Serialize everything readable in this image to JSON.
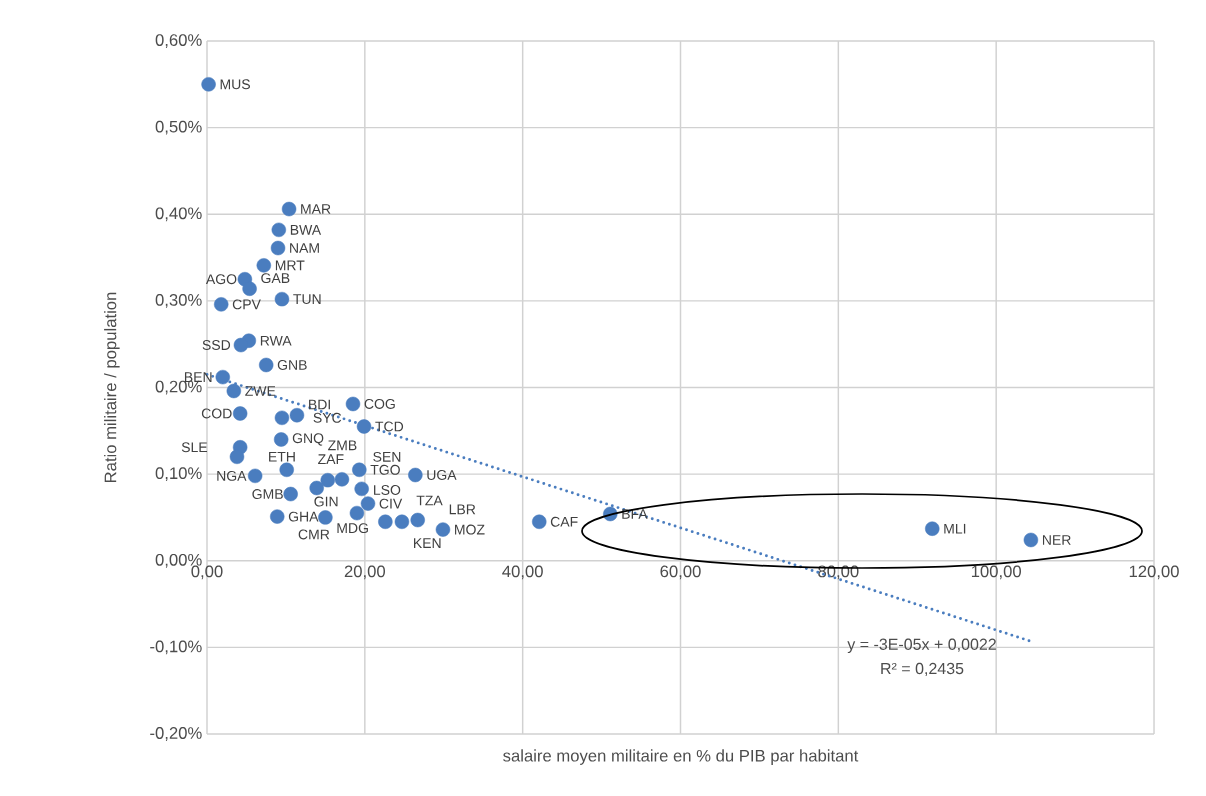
{
  "chart_data": {
    "type": "scatter",
    "xlabel": "salaire moyen militaire en % du PIB par habitant",
    "ylabel": "Ratio militaire / population",
    "xlim": [
      0,
      120
    ],
    "ylim": [
      -0.2,
      0.6
    ],
    "xticks": [
      {
        "value": 0,
        "label": "0,00"
      },
      {
        "value": 20,
        "label": "20,00"
      },
      {
        "value": 40,
        "label": "40,00"
      },
      {
        "value": 60,
        "label": "60,00"
      },
      {
        "value": 80,
        "label": "80,00"
      },
      {
        "value": 100,
        "label": "100,00"
      },
      {
        "value": 120,
        "label": "120,00"
      }
    ],
    "yticks": [
      {
        "value": -0.2,
        "label": "-0,20%"
      },
      {
        "value": -0.1,
        "label": "-0,10%"
      },
      {
        "value": 0,
        "label": "0,00%"
      },
      {
        "value": 0.1,
        "label": "0,10%"
      },
      {
        "value": 0.2,
        "label": "0,20%"
      },
      {
        "value": 0.3,
        "label": "0,30%"
      },
      {
        "value": 0.4,
        "label": "0,40%"
      },
      {
        "value": 0.5,
        "label": "0,50%"
      },
      {
        "value": 0.6,
        "label": "0,60%"
      }
    ],
    "grid": true,
    "legend": false,
    "series": [
      {
        "type": "scatter",
        "color": "#4a7dbf",
        "marker": "circle",
        "x": [
          0.2,
          10.4,
          9.1,
          9.0,
          7.2,
          4.8,
          5.4,
          9.5,
          1.8,
          5.3,
          4.3,
          7.5,
          2.0,
          3.4,
          4.2,
          9.5,
          11.4,
          18.5,
          19.9,
          9.4,
          4.2,
          3.8,
          10.1,
          6.1,
          10.6,
          8.9,
          19.3,
          26.4,
          15.3,
          17.1,
          13.9,
          19.6,
          20.4,
          15.0,
          19.0,
          22.6,
          24.7,
          26.7,
          29.9,
          42.1,
          51.1,
          91.9,
          104.4
        ],
        "values": [
          0.55,
          0.406,
          0.382,
          0.361,
          0.341,
          0.325,
          0.314,
          0.302,
          0.296,
          0.254,
          0.249,
          0.226,
          0.212,
          0.196,
          0.17,
          0.165,
          0.168,
          0.181,
          0.155,
          0.14,
          0.131,
          0.12,
          0.105,
          0.098,
          0.077,
          0.051,
          0.105,
          0.099,
          0.093,
          0.094,
          0.084,
          0.083,
          0.066,
          0.05,
          0.055,
          0.045,
          0.045,
          0.047,
          0.036,
          0.045,
          0.054,
          0.037,
          0.024
        ]
      },
      {
        "type": "line",
        "color": "#4a7dbf",
        "marker": "none",
        "line_style": "dotted",
        "x": [
          0,
          104.4
        ],
        "values": [
          0.215,
          -0.093
        ]
      }
    ],
    "annotations": [
      {
        "text": "MUS",
        "x": 0.2,
        "y": 0.55
      },
      {
        "text": "MAR",
        "x": 10.4,
        "y": 0.406
      },
      {
        "text": "BWA",
        "x": 9.1,
        "y": 0.382
      },
      {
        "text": "NAM",
        "x": 9.0,
        "y": 0.361
      },
      {
        "text": "MRT",
        "x": 7.2,
        "y": 0.341
      },
      {
        "text": "AGO",
        "x": 4.8,
        "y": 0.325
      },
      {
        "text": "GAB",
        "x": 5.4,
        "y": 0.314
      },
      {
        "text": "TUN",
        "x": 9.5,
        "y": 0.302
      },
      {
        "text": "CPV",
        "x": 1.8,
        "y": 0.296
      },
      {
        "text": "RWA",
        "x": 5.3,
        "y": 0.254
      },
      {
        "text": "SSD",
        "x": 4.3,
        "y": 0.249
      },
      {
        "text": "GNB",
        "x": 7.5,
        "y": 0.226
      },
      {
        "text": "BEN",
        "x": 2.0,
        "y": 0.212
      },
      {
        "text": "ZWE",
        "x": 3.4,
        "y": 0.196
      },
      {
        "text": "COD",
        "x": 4.2,
        "y": 0.17
      },
      {
        "text": "SYC",
        "x": 9.5,
        "y": 0.165
      },
      {
        "text": "BDI",
        "x": 11.4,
        "y": 0.168
      },
      {
        "text": "COG",
        "x": 18.5,
        "y": 0.181
      },
      {
        "text": "TCD",
        "x": 19.9,
        "y": 0.155
      },
      {
        "text": "GNQ",
        "x": 9.4,
        "y": 0.14
      },
      {
        "text": "SLE",
        "x": 4.2,
        "y": 0.131
      },
      {
        "text": "ETH",
        "x": 3.8,
        "y": 0.12
      },
      {
        "text": "ZAF",
        "x": 10.1,
        "y": 0.105
      },
      {
        "text": "NGA",
        "x": 6.1,
        "y": 0.098
      },
      {
        "text": "GMB",
        "x": 10.6,
        "y": 0.077
      },
      {
        "text": "GHA",
        "x": 8.9,
        "y": 0.051
      },
      {
        "text": "TGO",
        "x": 19.3,
        "y": 0.105
      },
      {
        "text": "UGA",
        "x": 26.4,
        "y": 0.099
      },
      {
        "text": "GIN",
        "x": 15.3,
        "y": 0.093
      },
      {
        "text": "LSO",
        "x": 17.1,
        "y": 0.094
      },
      {
        "text": "ZMB",
        "x": 13.9,
        "y": 0.084
      },
      {
        "text": "SEN",
        "x": 19.6,
        "y": 0.083
      },
      {
        "text": "CIV",
        "x": 20.4,
        "y": 0.066
      },
      {
        "text": "MDG",
        "x": 15.0,
        "y": 0.05
      },
      {
        "text": "CMR",
        "x": 19.0,
        "y": 0.055
      },
      {
        "text": "TZA",
        "x": 22.6,
        "y": 0.045
      },
      {
        "text": "KEN",
        "x": 24.7,
        "y": 0.045
      },
      {
        "text": "LBR",
        "x": 26.7,
        "y": 0.047
      },
      {
        "text": "MOZ",
        "x": 29.9,
        "y": 0.036
      },
      {
        "text": "CAF",
        "x": 42.1,
        "y": 0.045
      },
      {
        "text": "BFA",
        "x": 51.1,
        "y": 0.054
      },
      {
        "text": "MLI",
        "x": 91.9,
        "y": 0.037
      },
      {
        "text": "NER",
        "x": 104.4,
        "y": 0.024
      },
      "y = -3E-05x + 0,0022",
      "R² = 0,2435"
    ]
  }
}
